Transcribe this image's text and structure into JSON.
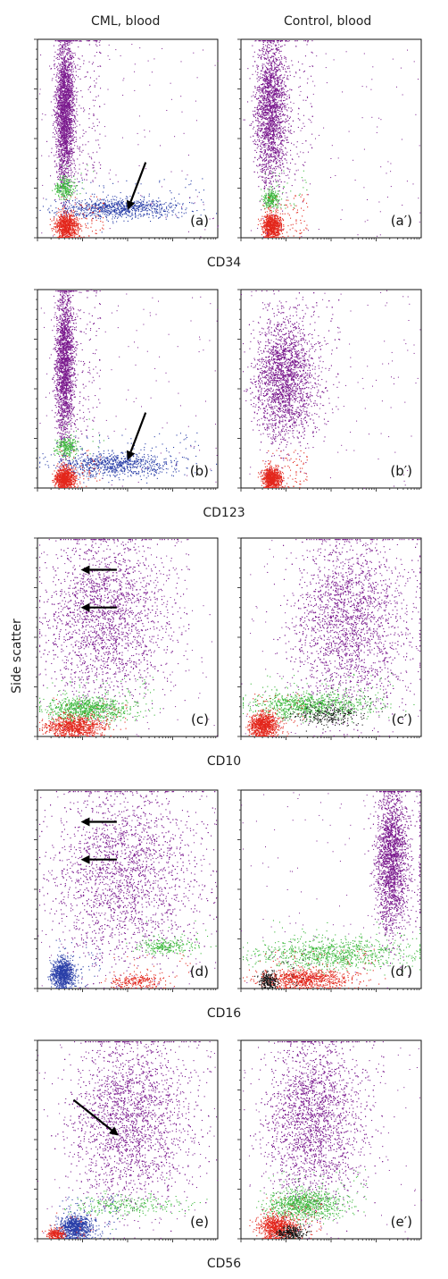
{
  "columns": [
    "CML, blood",
    "Control, blood"
  ],
  "ylabel": "Side scatter",
  "colors": {
    "purple": "#7b1a8e",
    "green": "#3cb83c",
    "blue": "#2a3fa8",
    "red": "#e3271c",
    "black": "#111111"
  },
  "chart_data": [
    {
      "type": "scatter",
      "marker": "CD34",
      "xlabel": "CD34",
      "scale": "log",
      "grid": false,
      "panels": [
        {
          "label": "(a)",
          "arrows": [
            {
              "direction": "down-left"
            }
          ],
          "populations": [
            {
              "color": "purple",
              "x": [
                0.1,
                0.2
              ],
              "y": [
                0.28,
                1.0
              ],
              "density": "high"
            },
            {
              "color": "green",
              "x": [
                0.1,
                0.2
              ],
              "y": [
                0.2,
                0.3
              ],
              "density": "low"
            },
            {
              "color": "blue",
              "x": [
                0.12,
                0.78
              ],
              "y": [
                0.1,
                0.2
              ],
              "density": "medium"
            },
            {
              "color": "red",
              "x": [
                0.1,
                0.22
              ],
              "y": [
                0.0,
                0.12
              ],
              "density": "medium"
            }
          ]
        },
        {
          "label": "(a′)",
          "populations": [
            {
              "color": "purple",
              "x": [
                0.08,
                0.25
              ],
              "y": [
                0.28,
                1.0
              ],
              "density": "high"
            },
            {
              "color": "green",
              "x": [
                0.12,
                0.22
              ],
              "y": [
                0.15,
                0.25
              ],
              "density": "low"
            },
            {
              "color": "red",
              "x": [
                0.12,
                0.22
              ],
              "y": [
                0.0,
                0.12
              ],
              "density": "medium"
            }
          ]
        }
      ]
    },
    {
      "type": "scatter",
      "marker": "CD123",
      "xlabel": "CD123",
      "scale": "log",
      "grid": false,
      "panels": [
        {
          "label": "(b)",
          "arrows": [
            {
              "direction": "down-left"
            }
          ],
          "populations": [
            {
              "color": "purple",
              "x": [
                0.1,
                0.2
              ],
              "y": [
                0.25,
                1.0
              ],
              "density": "high"
            },
            {
              "color": "green",
              "x": [
                0.1,
                0.22
              ],
              "y": [
                0.16,
                0.26
              ],
              "density": "low"
            },
            {
              "color": "blue",
              "x": [
                0.1,
                0.75
              ],
              "y": [
                0.06,
                0.18
              ],
              "density": "medium"
            },
            {
              "color": "red",
              "x": [
                0.1,
                0.2
              ],
              "y": [
                0.0,
                0.1
              ],
              "density": "medium"
            }
          ]
        },
        {
          "label": "(b′)",
          "populations": [
            {
              "color": "purple",
              "x": [
                0.08,
                0.4
              ],
              "y": [
                0.25,
                0.85
              ],
              "density": "high"
            },
            {
              "color": "red",
              "x": [
                0.12,
                0.22
              ],
              "y": [
                0.0,
                0.1
              ],
              "density": "medium"
            }
          ]
        }
      ]
    },
    {
      "type": "scatter",
      "marker": "CD10",
      "xlabel": "CD10",
      "scale": "log",
      "grid": false,
      "panels": [
        {
          "label": "(c)",
          "arrows": [
            {
              "direction": "left"
            },
            {
              "direction": "left"
            }
          ],
          "populations": [
            {
              "color": "purple",
              "x": [
                0.06,
                0.7
              ],
              "y": [
                0.2,
                1.0
              ],
              "density": "high"
            },
            {
              "color": "green",
              "x": [
                0.05,
                0.5
              ],
              "y": [
                0.08,
                0.2
              ],
              "density": "medium"
            },
            {
              "color": "red",
              "x": [
                0.05,
                0.35
              ],
              "y": [
                0.0,
                0.1
              ],
              "density": "medium"
            }
          ]
        },
        {
          "label": "(c′)",
          "populations": [
            {
              "color": "purple",
              "x": [
                0.3,
                0.9
              ],
              "y": [
                0.15,
                1.0
              ],
              "density": "high"
            },
            {
              "color": "green",
              "x": [
                0.05,
                0.7
              ],
              "y": [
                0.1,
                0.22
              ],
              "density": "medium"
            },
            {
              "color": "black",
              "x": [
                0.3,
                0.65
              ],
              "y": [
                0.05,
                0.16
              ],
              "density": "low"
            },
            {
              "color": "red",
              "x": [
                0.05,
                0.2
              ],
              "y": [
                0.0,
                0.12
              ],
              "density": "medium"
            }
          ]
        }
      ]
    },
    {
      "type": "scatter",
      "marker": "CD16",
      "xlabel": "CD16",
      "scale": "log",
      "grid": false,
      "panels": [
        {
          "label": "(d)",
          "arrows": [
            {
              "direction": "left"
            },
            {
              "direction": "left"
            }
          ],
          "populations": [
            {
              "color": "purple",
              "x": [
                0.1,
                0.85
              ],
              "y": [
                0.15,
                1.0
              ],
              "density": "high"
            },
            {
              "color": "green",
              "x": [
                0.55,
                0.85
              ],
              "y": [
                0.18,
                0.25
              ],
              "density": "low"
            },
            {
              "color": "blue",
              "x": [
                0.08,
                0.2
              ],
              "y": [
                0.0,
                0.15
              ],
              "density": "medium"
            },
            {
              "color": "red",
              "x": [
                0.4,
                0.7
              ],
              "y": [
                0.0,
                0.08
              ],
              "density": "low"
            }
          ]
        },
        {
          "label": "(d′)",
          "populations": [
            {
              "color": "purple",
              "x": [
                0.75,
                0.92
              ],
              "y": [
                0.3,
                1.0
              ],
              "density": "high"
            },
            {
              "color": "green",
              "x": [
                0.1,
                0.9
              ],
              "y": [
                0.1,
                0.25
              ],
              "density": "medium"
            },
            {
              "color": "red",
              "x": [
                0.1,
                0.6
              ],
              "y": [
                0.0,
                0.1
              ],
              "density": "medium"
            },
            {
              "color": "black",
              "x": [
                0.1,
                0.2
              ],
              "y": [
                0.0,
                0.08
              ],
              "density": "low"
            }
          ]
        }
      ]
    },
    {
      "type": "scatter",
      "marker": "CD56",
      "xlabel": "CD56",
      "scale": "log",
      "grid": false,
      "panels": [
        {
          "label": "(e)",
          "arrows": [
            {
              "direction": "down-right"
            }
          ],
          "populations": [
            {
              "color": "purple",
              "x": [
                0.2,
                0.82
              ],
              "y": [
                0.2,
                1.0
              ],
              "density": "high"
            },
            {
              "color": "green",
              "x": [
                0.2,
                0.8
              ],
              "y": [
                0.12,
                0.22
              ],
              "density": "low"
            },
            {
              "color": "blue",
              "x": [
                0.12,
                0.3
              ],
              "y": [
                0.0,
                0.12
              ],
              "density": "medium"
            },
            {
              "color": "red",
              "x": [
                0.05,
                0.15
              ],
              "y": [
                0.0,
                0.05
              ],
              "density": "low"
            }
          ]
        },
        {
          "label": "(e′)",
          "populations": [
            {
              "color": "purple",
              "x": [
                0.15,
                0.65
              ],
              "y": [
                0.2,
                1.0
              ],
              "density": "high"
            },
            {
              "color": "green",
              "x": [
                0.15,
                0.55
              ],
              "y": [
                0.1,
                0.25
              ],
              "density": "medium"
            },
            {
              "color": "red",
              "x": [
                0.1,
                0.3
              ],
              "y": [
                0.0,
                0.12
              ],
              "density": "medium"
            },
            {
              "color": "black",
              "x": [
                0.2,
                0.35
              ],
              "y": [
                0.0,
                0.06
              ],
              "density": "low"
            }
          ]
        }
      ]
    }
  ]
}
